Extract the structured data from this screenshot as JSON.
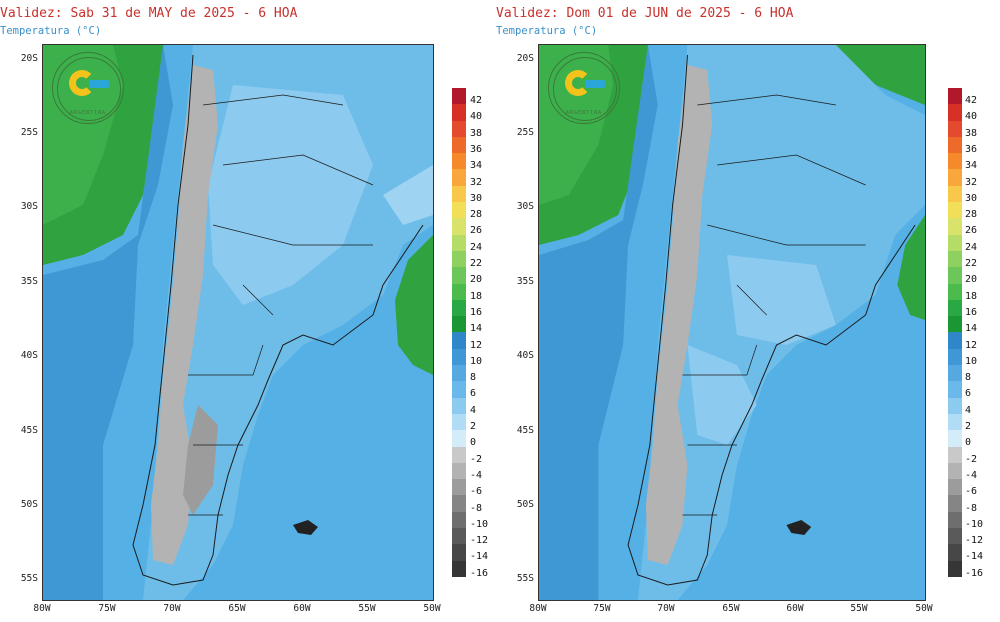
{
  "panels": [
    {
      "validez": "Validez: Sab 31 de MAY de 2025 - 6 HOA",
      "variable": "Temperatura (°C)"
    },
    {
      "validez": "Validez: Dom 01 de JUN de 2025 - 6 HOA",
      "variable": "Temperatura (°C)"
    }
  ],
  "lat_labels": [
    "20S",
    "25S",
    "30S",
    "35S",
    "40S",
    "45S",
    "50S",
    "55S"
  ],
  "lon_labels": [
    "80W",
    "75W",
    "70W",
    "65W",
    "60W",
    "55W",
    "50W"
  ],
  "logo": {
    "text": "ARGENTINA",
    "icon": "smn-logo-icon"
  },
  "colorbar": {
    "labels": [
      "42",
      "40",
      "38",
      "36",
      "34",
      "32",
      "30",
      "28",
      "26",
      "24",
      "22",
      "20",
      "18",
      "16",
      "14",
      "12",
      "10",
      "8",
      "6",
      "4",
      "2",
      "0",
      "-2",
      "-4",
      "-6",
      "-8",
      "-10",
      "-12",
      "-14",
      "-16"
    ],
    "colors": [
      "#b2182b",
      "#d73027",
      "#e34a2e",
      "#ee6a2a",
      "#f58a2a",
      "#f8a83a",
      "#f8c84a",
      "#f3de5a",
      "#d9e26a",
      "#b5dc66",
      "#8fd160",
      "#6cc65a",
      "#4cbb4e",
      "#2aa843",
      "#1a9632",
      "#2f86c8",
      "#3f97d6",
      "#54a9e1",
      "#6bb9ea",
      "#8ccaf0",
      "#b0dcf5",
      "#d4ecf8",
      "#c9c9c9",
      "#b3b3b3",
      "#9c9c9c",
      "#858585",
      "#6e6e6e",
      "#5a5a5a",
      "#474747",
      "#363636"
    ]
  }
}
